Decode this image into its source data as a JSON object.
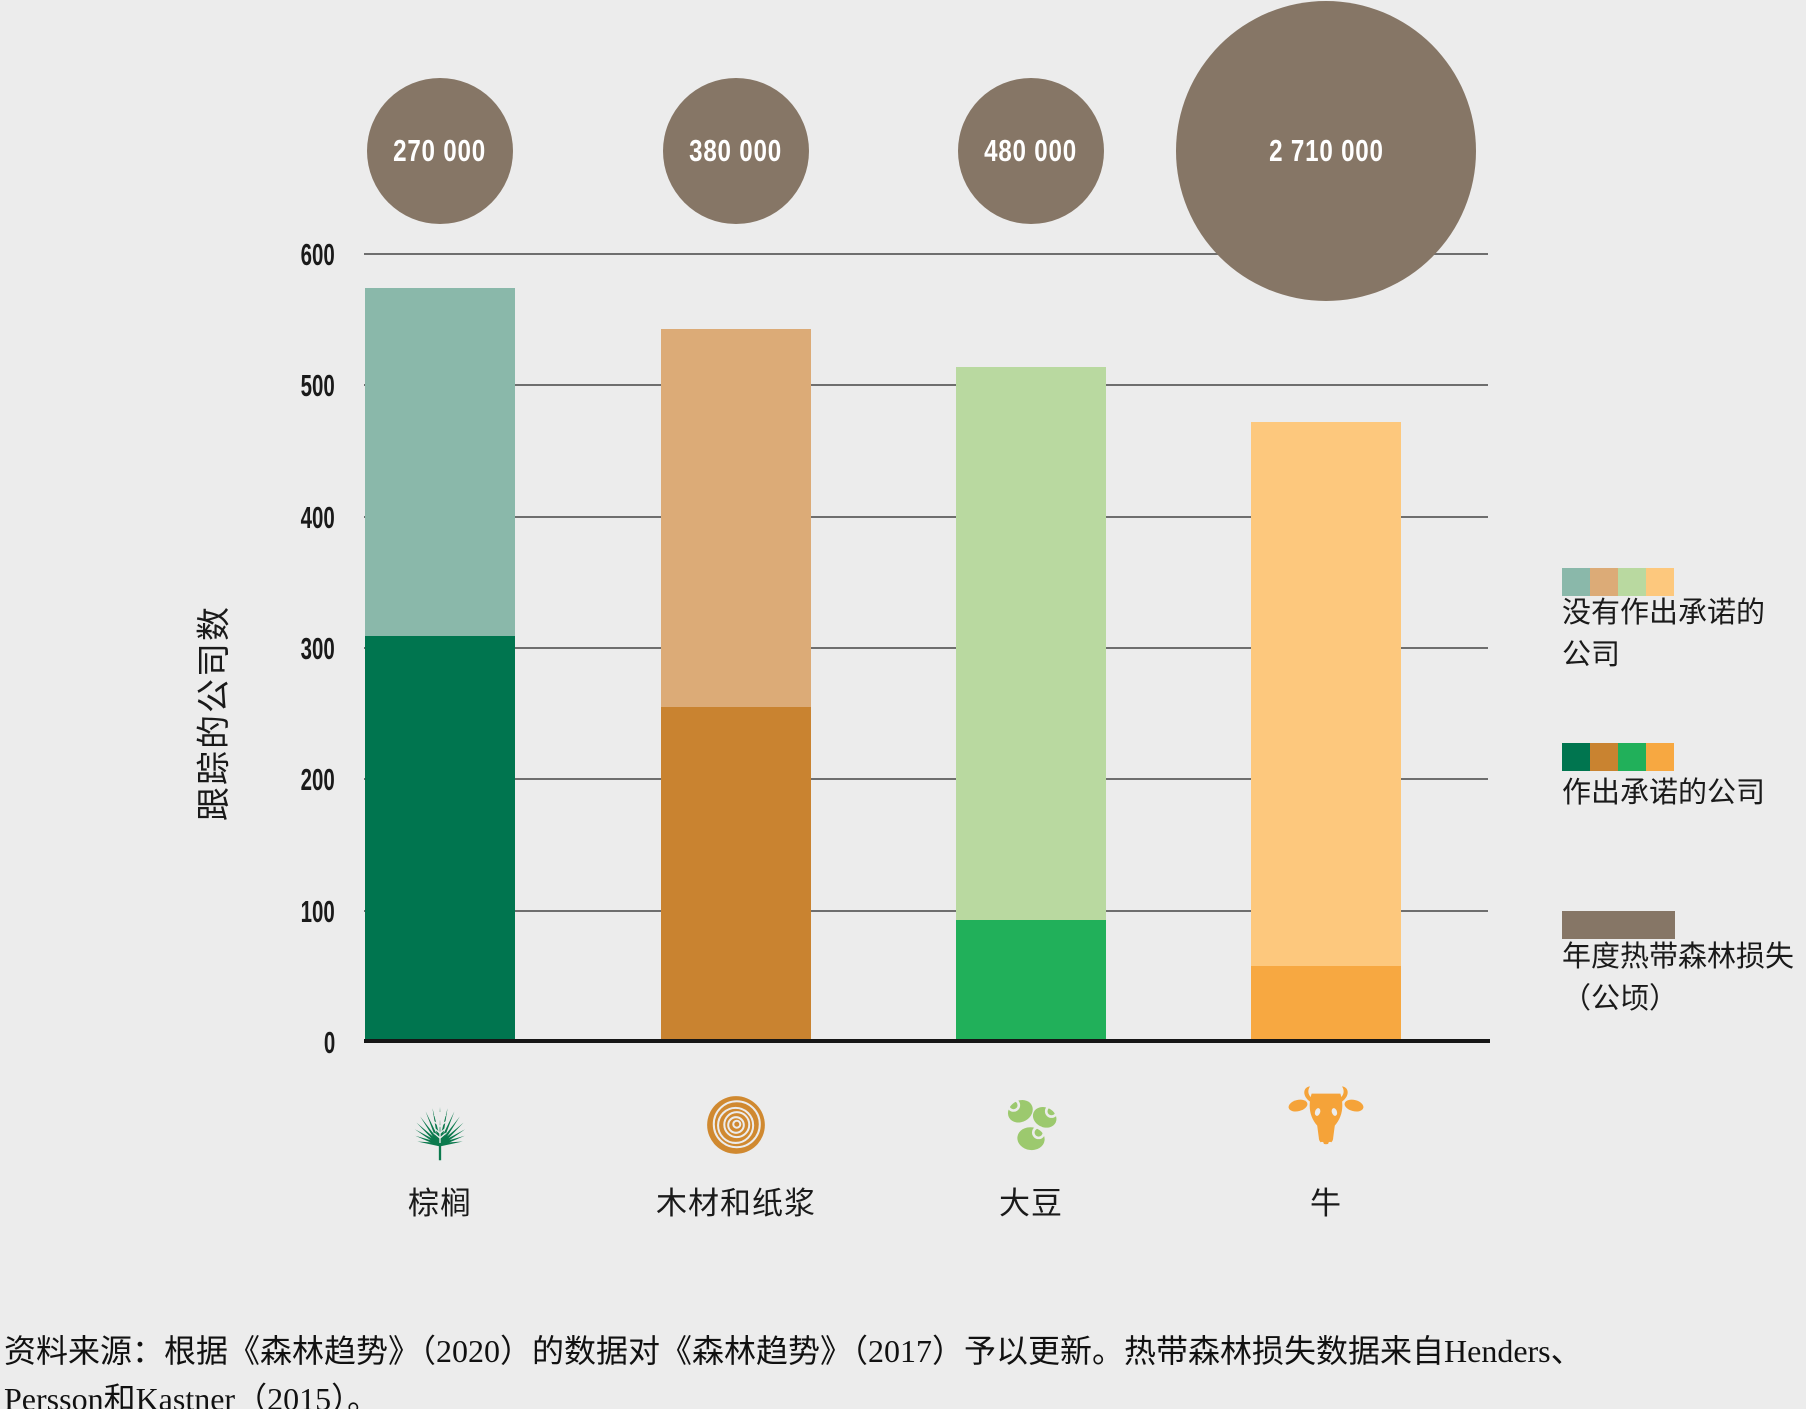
{
  "background_color": "#ececec",
  "y_axis": {
    "title": "跟踪的公司数",
    "ticks": [
      600,
      500,
      400,
      300,
      200,
      100,
      0
    ],
    "ylim": [
      0,
      600
    ]
  },
  "chart_data": {
    "type": "bar",
    "stacked": true,
    "categories": [
      "棕榈",
      "木材和纸浆",
      "大豆",
      "牛"
    ],
    "category_keys": [
      "palm",
      "wood-pulp",
      "soy",
      "cattle"
    ],
    "series": [
      {
        "name": "作出承诺的公司",
        "values": [
          308,
          254,
          92,
          57
        ],
        "colors": [
          "#00754f",
          "#c98330",
          "#21b05a",
          "#f7a841"
        ]
      },
      {
        "name": "没有作出承诺的公司",
        "values": [
          265,
          288,
          421,
          414
        ],
        "colors": [
          "#8ab8aa",
          "#dcab77",
          "#b9d9a0",
          "#fdc87d"
        ]
      }
    ],
    "totals": [
      573,
      542,
      513,
      471
    ],
    "annual_forest_loss": {
      "name": "年度热带森林损失（公顷）",
      "values": [
        270000,
        380000,
        480000,
        2710000
      ],
      "labels": [
        "270 000",
        "380 000",
        "480 000",
        "2 710 000"
      ],
      "color": "#867666"
    },
    "ylabel": "跟踪的公司数",
    "xlabel": "",
    "grid": true,
    "legend_position": "right"
  },
  "legend": [
    {
      "label": "没有作出承诺的公司",
      "label_lines": [
        "没有作出承诺的",
        "公司"
      ],
      "swatches": [
        "#8ab8aa",
        "#dcab77",
        "#b9d9a0",
        "#fdc87d"
      ]
    },
    {
      "label": "作出承诺的公司",
      "label_lines": [
        "作出承诺的公司",
        ""
      ],
      "swatches": [
        "#00754f",
        "#c98330",
        "#21b05a",
        "#f7a841"
      ]
    },
    {
      "label": "年度热带森林损失（公顷）",
      "label_lines": [
        "年度热带森林损失",
        "（公顷）"
      ],
      "swatches": [
        "#867666"
      ]
    }
  ],
  "icons": [
    "palm-leaf-icon",
    "wood-rings-icon",
    "soybeans-icon",
    "cattle-head-icon"
  ],
  "source": {
    "line1": "资料来源：根据《森林趋势》（2020）的数据对《森林趋势》（2017）予以更新。热带森林损失数据来自Henders、",
    "line2": "Persson和Kastner（2015）。"
  }
}
